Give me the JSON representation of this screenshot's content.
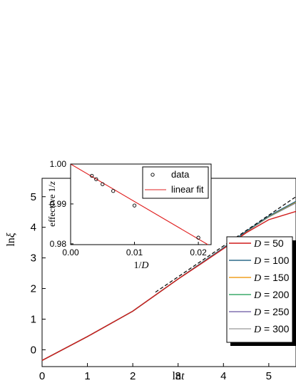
{
  "chart_data": [
    {
      "type": "line",
      "xlabel": "ln t",
      "xlabel_prefix": "ln",
      "xlabel_var": "t",
      "ylabel": "ln ξ",
      "ylabel_prefix": "ln",
      "ylabel_var": "ξ",
      "xlim": [
        0,
        5.6
      ],
      "ylim": [
        -0.55,
        5.6
      ],
      "xticks": [
        "0",
        "1",
        "2",
        "3",
        "4",
        "5"
      ],
      "yticks": [
        "0",
        "1",
        "2",
        "3",
        "4",
        "5"
      ],
      "legend_position": "bottom-right",
      "series": [
        {
          "name": "D = 50",
          "param": "D",
          "value_label": "= 50",
          "color": "#d01c1c",
          "x": [
            0,
            1,
            2,
            3,
            3.5,
            4,
            4.5,
            5,
            5.6
          ],
          "y": [
            -0.35,
            0.43,
            1.26,
            2.31,
            2.8,
            3.3,
            3.82,
            4.25,
            4.52
          ]
        },
        {
          "name": "D = 100",
          "param": "D",
          "value_label": "= 100",
          "color": "#2d6b8a",
          "x": [
            0,
            1,
            2,
            3,
            3.5,
            4,
            4.5,
            5,
            5.6
          ],
          "y": [
            -0.35,
            0.43,
            1.26,
            2.31,
            2.82,
            3.33,
            3.87,
            4.37,
            4.85
          ]
        },
        {
          "name": "D = 150",
          "param": "D",
          "value_label": "= 150",
          "color": "#f0a020",
          "x": [
            0,
            1,
            2,
            3,
            3.5,
            4,
            4.5,
            5,
            5.6
          ],
          "y": [
            -0.35,
            0.43,
            1.26,
            2.31,
            2.82,
            3.33,
            3.86,
            4.36,
            4.83
          ]
        },
        {
          "name": "D = 200",
          "param": "D",
          "value_label": "= 200",
          "color": "#3caa6a",
          "x": [
            0,
            1,
            2,
            3,
            3.5,
            4,
            4.5,
            5,
            5.6
          ],
          "y": [
            -0.35,
            0.43,
            1.26,
            2.31,
            2.82,
            3.33,
            3.86,
            4.35,
            4.82
          ]
        },
        {
          "name": "D = 250",
          "param": "D",
          "value_label": "= 250",
          "color": "#8070b0",
          "x": [
            0,
            1,
            2,
            3,
            3.5,
            4,
            4.5,
            5,
            5.6
          ],
          "y": [
            -0.35,
            0.43,
            1.26,
            2.31,
            2.82,
            3.32,
            3.85,
            4.34,
            4.8
          ]
        },
        {
          "name": "D = 300",
          "param": "D",
          "value_label": "= 300",
          "color": "#a8a8a8",
          "x": [
            0,
            1,
            2,
            3,
            3.5,
            4,
            4.5,
            5,
            5.6
          ],
          "y": [
            -0.35,
            0.43,
            1.26,
            2.31,
            2.82,
            3.32,
            3.85,
            4.34,
            4.8
          ]
        }
      ],
      "reference_line": {
        "x": [
          2.5,
          5.6
        ],
        "y": [
          1.88,
          5.0
        ],
        "style": "dashed",
        "color": "#000000"
      }
    },
    {
      "type": "scatter",
      "xlabel": "1/D",
      "xlabel_prefix": "1/",
      "xlabel_var": "D",
      "ylabel": "effective 1/z",
      "ylabel_prefix": "effective 1/",
      "ylabel_var": "z",
      "xlim": [
        0,
        0.022
      ],
      "ylim": [
        0.9798,
        1.0
      ],
      "xticks": [
        "0.00",
        "0.01",
        "0.02"
      ],
      "yticks": [
        "0.98",
        "0.99",
        "1.00"
      ],
      "legend_position": "top-right",
      "series": [
        {
          "name": "data",
          "marker": "open-circle",
          "color": "#000000",
          "x": [
            0.00333,
            0.004,
            0.005,
            0.00667,
            0.01,
            0.02
          ],
          "y": [
            0.99705,
            0.9962,
            0.99495,
            0.99325,
            0.9896,
            0.98155
          ]
        },
        {
          "name": "linear fit",
          "line": "solid",
          "color": "#e02020",
          "x": [
            0,
            0.0215
          ],
          "y": [
            1.0,
            0.9798
          ]
        }
      ]
    }
  ]
}
